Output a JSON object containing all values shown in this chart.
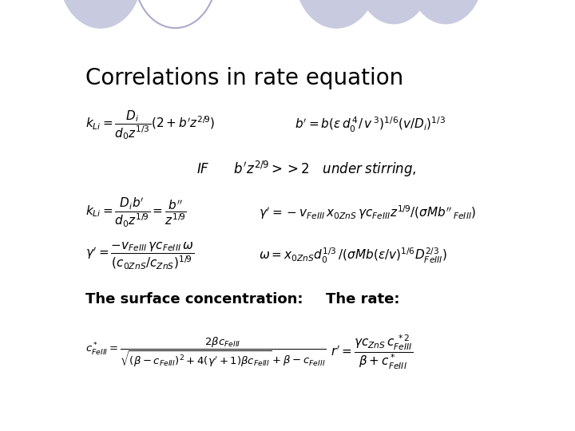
{
  "title": "Correlations in rate equation",
  "title_fontsize": 20,
  "background_color": "#ffffff",
  "circle_color": "#c8cadf",
  "circles_filled": [
    [
      0.175,
      -0.06,
      0.072,
      0.125
    ],
    [
      0.585,
      -0.06,
      0.072,
      0.125
    ],
    [
      0.685,
      -0.06,
      0.065,
      0.115
    ],
    [
      0.775,
      -0.06,
      0.065,
      0.115
    ]
  ],
  "circles_outline": [
    [
      0.305,
      -0.06,
      0.072,
      0.125
    ]
  ],
  "text_color": "#000000",
  "label_fontsize": 13,
  "label_bold": true
}
